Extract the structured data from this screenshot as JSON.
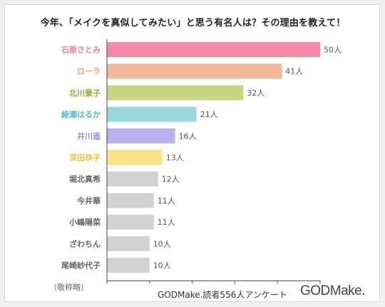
{
  "chart_data": {
    "type": "bar",
    "orientation": "horizontal",
    "title": "今年、「メイクを真似してみたい」と思う有名人は？その理由を教えて！",
    "categories": [
      "石原さとみ",
      "ローラ",
      "北川景子",
      "綾瀬はるか",
      "井川遥",
      "深田恭子",
      "堀北真希",
      "今井華",
      "小嶋陽菜",
      "ざわちん",
      "尾崎紗代子"
    ],
    "values": [
      50,
      41,
      32,
      21,
      16,
      13,
      12,
      11,
      11,
      10,
      10
    ],
    "value_labels": [
      "50人",
      "41人",
      "32人",
      "21人",
      "16人",
      "13人",
      "12人",
      "11人",
      "11人",
      "10人",
      "10人"
    ],
    "colors": [
      "#f58aa8",
      "#f4b896",
      "#c9d681",
      "#9ad8e0",
      "#b9b0ee",
      "#fde28a",
      "#d2d2d2",
      "#d2d2d2",
      "#d2d2d2",
      "#d2d2d2",
      "#d2d2d2"
    ],
    "label_colors": [
      "#f07a9a",
      "#f0a07a",
      "#9aac2f",
      "#5fb9c6",
      "#9c8fe6",
      "#f2c23a",
      "#666666",
      "#666666",
      "#666666",
      "#666666",
      "#666666"
    ],
    "xlim": [
      0,
      50
    ],
    "grid": false
  },
  "footer": {
    "note": "（敬称略）",
    "source": "GODMake.読者556人アンケート",
    "brand": "GODMake."
  }
}
